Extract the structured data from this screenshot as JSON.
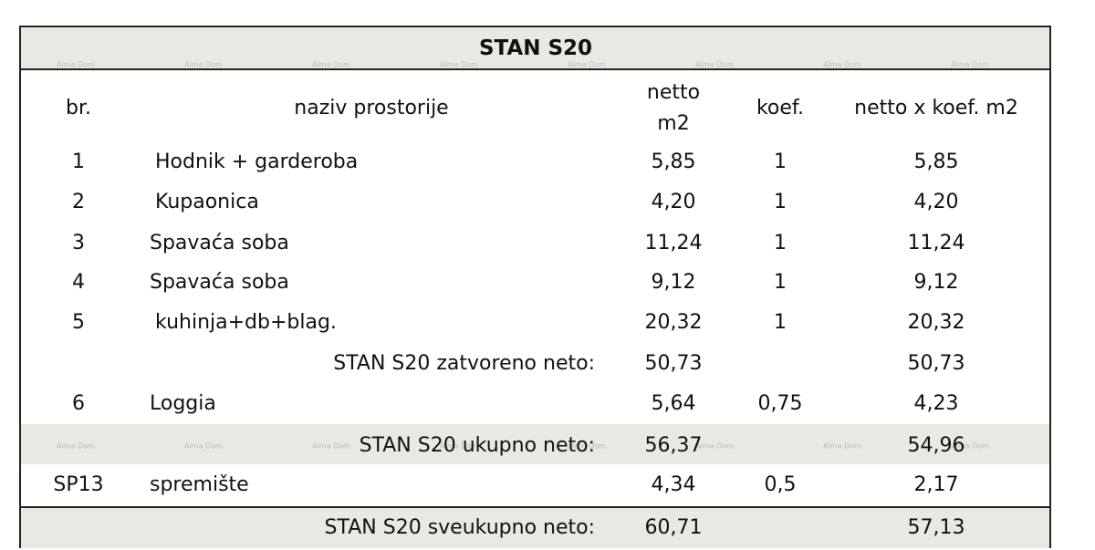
{
  "table": {
    "title": "STAN S20",
    "watermark": "Alma Dom",
    "header": [
      "br.",
      "naziv prostorije",
      "netto m2",
      "koef.",
      "netto x koef. m2"
    ],
    "rows": [
      {
        "br": "1",
        "name": "Hodnik + garderoba",
        "netto": "5,85",
        "koef": "1",
        "total": "5,85"
      },
      {
        "br": "2",
        "name": "Kupaonica",
        "netto": "4,20",
        "koef": "1",
        "total": "4,20"
      },
      {
        "br": "3",
        "name": "Spavaća soba",
        "netto": "11,24",
        "koef": "1",
        "total": "11,24"
      },
      {
        "br": "4",
        "name": "Spavaća soba",
        "netto": "9,12",
        "koef": "1",
        "total": "9,12"
      },
      {
        "br": "5",
        "name": "kuhinja+db+blag.",
        "netto": "20,32",
        "koef": "1",
        "total": "20,32"
      },
      {
        "label": "STAN S20 zatvoreno neto:",
        "netto": "50,73",
        "total": "50,73"
      },
      {
        "br": "6",
        "name": "Loggia",
        "netto": "5,64",
        "koef": "0,75",
        "total": "4,23"
      },
      {
        "label": "STAN S20 ukupno neto:",
        "netto": "56,37",
        "total": "54,96",
        "shaded": true
      },
      {
        "br": "SP13",
        "name": "spremište",
        "netto": "4,34",
        "koef": "0,5",
        "total": "2,17"
      },
      {
        "label": "STAN S20 sveukupno neto:",
        "netto": "60,71",
        "total": "57,13",
        "shaded": true
      }
    ]
  }
}
